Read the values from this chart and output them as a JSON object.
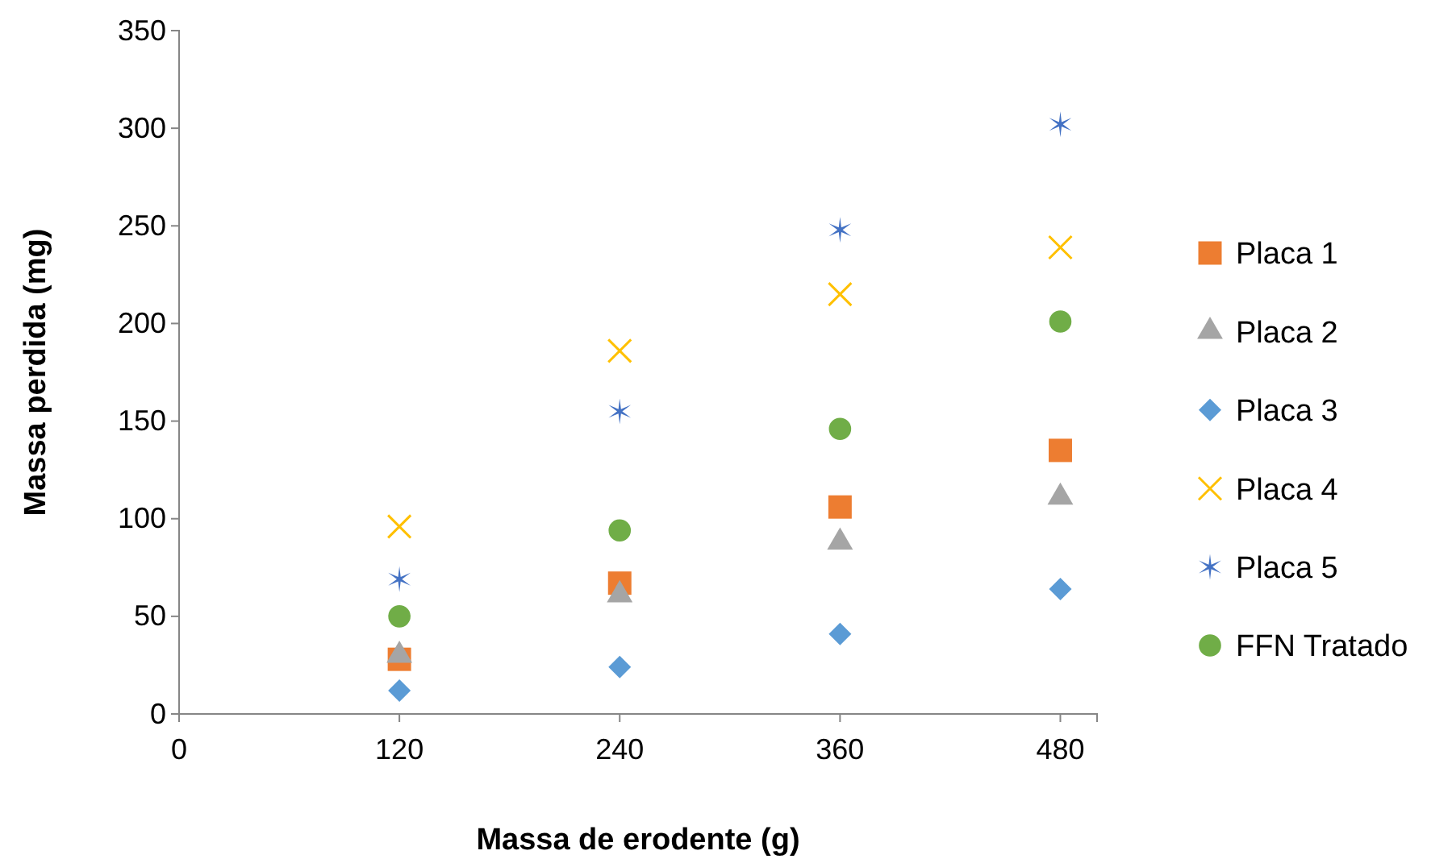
{
  "chart_data": {
    "type": "scatter",
    "xlabel": "Massa de erodente (g)",
    "ylabel": "Massa perdida (mg)",
    "x": [
      120,
      240,
      360,
      480
    ],
    "xlim": [
      0,
      500
    ],
    "xticks": [
      0,
      120,
      240,
      360,
      480
    ],
    "ylim": [
      0,
      350
    ],
    "yticks": [
      0,
      50,
      100,
      150,
      200,
      250,
      300,
      350
    ],
    "grid": false,
    "legend": "right",
    "series": [
      {
        "name": "Placa 1",
        "color": "#ed7d31",
        "marker": "square",
        "values": [
          28,
          67,
          106,
          135
        ]
      },
      {
        "name": "Placa 2",
        "color": "#a5a5a5",
        "marker": "triangle",
        "values": [
          30,
          61,
          88,
          111
        ]
      },
      {
        "name": "Placa 3",
        "color": "#5b9bd5",
        "marker": "diamond",
        "values": [
          12,
          24,
          41,
          64
        ]
      },
      {
        "name": "Placa 4",
        "color": "#ffc000",
        "marker": "cross",
        "values": [
          96,
          186,
          215,
          239
        ]
      },
      {
        "name": "Placa 5",
        "color": "#4472c4",
        "values": [
          69,
          155,
          248,
          302
        ]
      },
      {
        "name": "FFN Tratado",
        "color": "#70ad47",
        "marker": "circle",
        "values": [
          50,
          94,
          146,
          201
        ]
      }
    ]
  }
}
